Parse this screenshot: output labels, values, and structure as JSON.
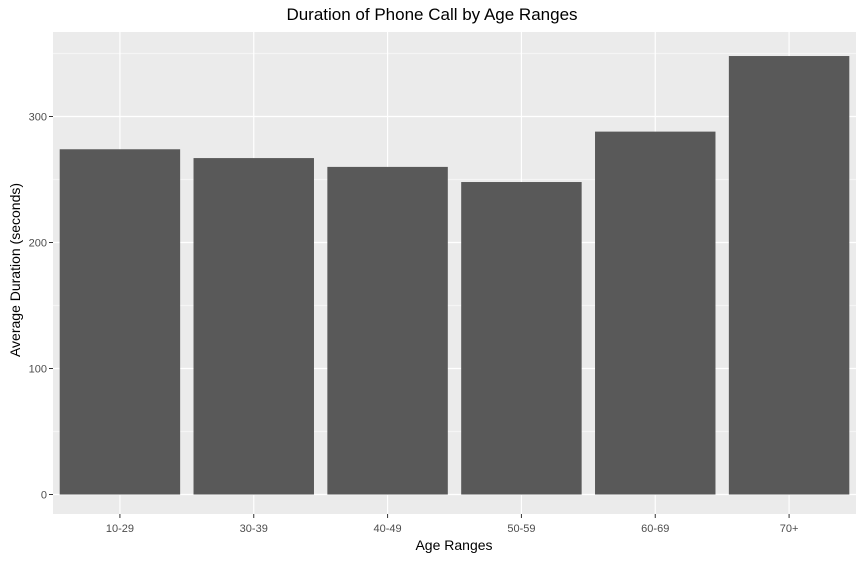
{
  "chart_data": {
    "type": "bar",
    "title": "Duration of Phone Call by Age Ranges",
    "xlabel": "Age Ranges",
    "ylabel": "Average Duration (seconds)",
    "categories": [
      "10-29",
      "30-39",
      "40-49",
      "50-59",
      "60-69",
      "70+"
    ],
    "values": [
      274,
      267,
      260,
      248,
      288,
      348
    ],
    "yticks": [
      0,
      100,
      200,
      300
    ],
    "ylim": [
      0,
      366
    ],
    "grid": true,
    "legend": "none",
    "colors": {
      "bar": "#595959",
      "panel": "#EBEBEB",
      "grid_major": "#FFFFFF",
      "grid_minor": "#F5F5F5",
      "tick_text": "#4D4D4D",
      "tick_mark": "#333333"
    }
  }
}
